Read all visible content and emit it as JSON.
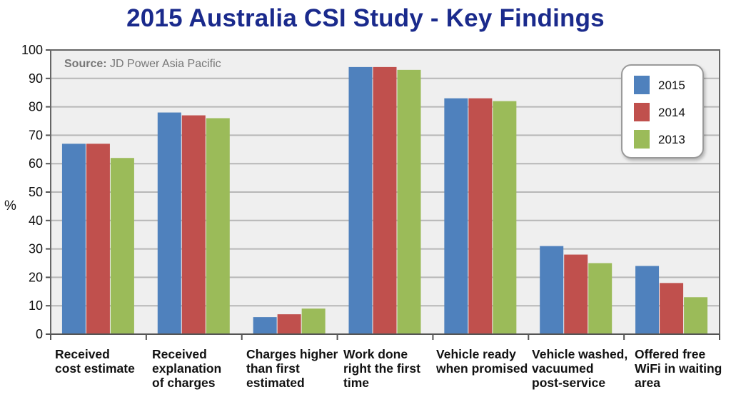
{
  "source": {
    "label": "Source:",
    "value": "JD Power Asia Pacific"
  },
  "colors": {
    "2015": "#4f81bd",
    "2014": "#c0504d",
    "2013": "#9bbb59"
  },
  "chart_data": {
    "type": "bar",
    "title": "2015 Australia CSI Study - Key Findings",
    "ylabel": "%",
    "xlabel": "",
    "ylim": [
      0,
      100
    ],
    "yticks": [
      0,
      10,
      20,
      30,
      40,
      50,
      60,
      70,
      80,
      90,
      100
    ],
    "grid": true,
    "legend": "top-right",
    "categories": [
      "Received\ncost estimate",
      "Received\nexplanation\nof charges",
      "Charges higher\nthan first\nestimated",
      "Work done\nright the first\ntime",
      "Vehicle ready\nwhen promised",
      "Vehicle washed,\nvacuumed\npost-service",
      "Offered free\nWiFi in waiting\narea"
    ],
    "series": [
      {
        "name": "2015",
        "values": [
          67,
          78,
          6,
          94,
          83,
          31,
          24
        ]
      },
      {
        "name": "2014",
        "values": [
          67,
          77,
          7,
          94,
          83,
          28,
          18
        ]
      },
      {
        "name": "2013",
        "values": [
          62,
          76,
          9,
          93,
          82,
          25,
          13
        ]
      }
    ]
  }
}
